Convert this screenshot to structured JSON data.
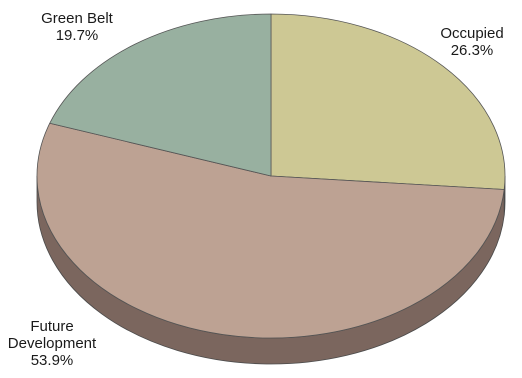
{
  "chart_data": {
    "type": "pie",
    "style": "3d-tilted",
    "slices": [
      {
        "label_lines": [
          "Occupied"
        ],
        "value": 26.3,
        "value_text": "26.3%",
        "color": "#cdc894",
        "side_color": "#8e8a60"
      },
      {
        "label_lines": [
          "Future",
          "Development"
        ],
        "value": 53.9,
        "value_text": "53.9%",
        "color": "#bda293",
        "side_color": "#7b665e"
      },
      {
        "label_lines": [
          "Green Belt"
        ],
        "value": 19.7,
        "value_text": "19.7%",
        "color": "#98b0a0",
        "side_color": "#647a6c"
      }
    ],
    "start_angle": "12 o'clock, clockwise"
  }
}
